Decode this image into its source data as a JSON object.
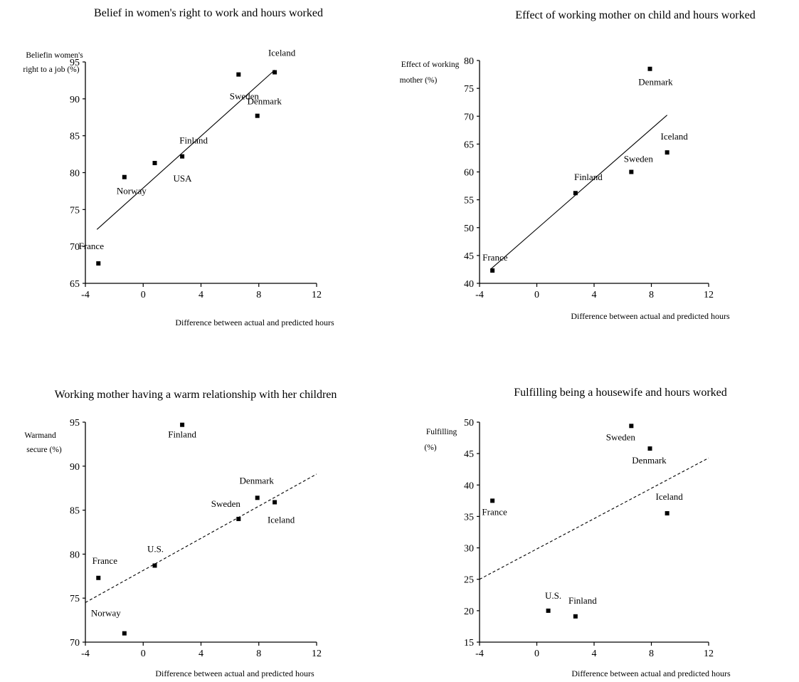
{
  "chart_data": [
    {
      "type": "scatter",
      "title": "Belief in women's right to work and hours worked",
      "xlabel": "Difference between actual and predicted hours",
      "ylabel": [
        "Beliefin women's",
        "right to a job (%)"
      ],
      "xlim": [
        -4,
        12
      ],
      "ylim": [
        65,
        95
      ],
      "xticks": [
        "-4",
        "0",
        "4",
        "8",
        "12"
      ],
      "yticks": [
        "65",
        "70",
        "75",
        "80",
        "85",
        "90",
        "95"
      ],
      "grid": false,
      "points": [
        {
          "label": "Iceland",
          "x": 9.1,
          "y": 93.6
        },
        {
          "label": "Sweden",
          "x": 6.6,
          "y": 93.3
        },
        {
          "label": "Denmark",
          "x": 7.9,
          "y": 87.7
        },
        {
          "label": "Finland",
          "x": 2.7,
          "y": 82.2
        },
        {
          "label": "USA",
          "x": 0.8,
          "y": 81.3
        },
        {
          "label": "Norway",
          "x": -1.3,
          "y": 79.4
        },
        {
          "label": "France",
          "x": -3.1,
          "y": 67.7
        }
      ],
      "fit_line": {
        "style": "solid",
        "x": [
          -3.2,
          9.1
        ],
        "y": [
          72.3,
          93.9
        ]
      }
    },
    {
      "type": "scatter",
      "title": "Effect of working mother on child and hours worked",
      "xlabel": "Difference between actual and predicted hours",
      "ylabel": [
        "Effect of working",
        "mother (%)"
      ],
      "xlim": [
        -4,
        12
      ],
      "ylim": [
        40,
        80
      ],
      "xticks": [
        "-4",
        "0",
        "4",
        "8",
        "12"
      ],
      "yticks": [
        "40",
        "45",
        "50",
        "55",
        "60",
        "65",
        "70",
        "75",
        "80"
      ],
      "grid": false,
      "points": [
        {
          "label": "Denmark",
          "x": 7.9,
          "y": 78.5
        },
        {
          "label": "Iceland",
          "x": 9.1,
          "y": 63.5
        },
        {
          "label": "Sweden",
          "x": 6.6,
          "y": 60.0
        },
        {
          "label": "Finland",
          "x": 2.7,
          "y": 56.2
        },
        {
          "label": "France",
          "x": -3.1,
          "y": 42.3
        }
      ],
      "fit_line": {
        "style": "solid",
        "x": [
          -3.2,
          9.1
        ],
        "y": [
          42.6,
          70.2
        ]
      }
    },
    {
      "type": "scatter",
      "title": "Working mother having a warm relationship with her children",
      "xlabel": "Difference between actual and predicted hours",
      "ylabel": [
        "Warmand",
        "secure (%)"
      ],
      "xlim": [
        -4,
        12
      ],
      "ylim": [
        70,
        95
      ],
      "xticks": [
        "-4",
        "0",
        "4",
        "8",
        "12"
      ],
      "yticks": [
        "70",
        "75",
        "80",
        "85",
        "90",
        "95"
      ],
      "grid": false,
      "points": [
        {
          "label": "Finland",
          "x": 2.7,
          "y": 94.7
        },
        {
          "label": "Denmark",
          "x": 7.9,
          "y": 86.4
        },
        {
          "label": "Iceland",
          "x": 9.1,
          "y": 85.9
        },
        {
          "label": "Sweden",
          "x": 6.6,
          "y": 84.0
        },
        {
          "label": "U.S.",
          "x": 0.8,
          "y": 78.7
        },
        {
          "label": "France",
          "x": -3.1,
          "y": 77.3
        },
        {
          "label": "Norway",
          "x": -1.3,
          "y": 71.0
        }
      ],
      "fit_line": {
        "style": "dashed",
        "x": [
          -4,
          12
        ],
        "y": [
          74.5,
          89.1
        ]
      }
    },
    {
      "type": "scatter",
      "title": "Fulfilling being a housewife and hours worked",
      "xlabel": "Difference between actual and predicted hours",
      "ylabel": [
        "Fulfilling",
        "(%)"
      ],
      "xlim": [
        -4,
        12
      ],
      "ylim": [
        15,
        50
      ],
      "xticks": [
        "-4",
        "0",
        "4",
        "8",
        "12"
      ],
      "yticks": [
        "15",
        "20",
        "25",
        "30",
        "35",
        "40",
        "45",
        "50"
      ],
      "grid": false,
      "points": [
        {
          "label": "Sweden",
          "x": 6.6,
          "y": 49.4
        },
        {
          "label": "Denmark",
          "x": 7.9,
          "y": 45.8
        },
        {
          "label": "France",
          "x": -3.1,
          "y": 37.5
        },
        {
          "label": "Iceland",
          "x": 9.1,
          "y": 35.5
        },
        {
          "label": "U.S.",
          "x": 0.8,
          "y": 20.0
        },
        {
          "label": "Finland",
          "x": 2.7,
          "y": 19.1
        }
      ],
      "fit_line": {
        "style": "dashed",
        "x": [
          -4,
          12
        ],
        "y": [
          25.0,
          44.3
        ]
      }
    }
  ]
}
